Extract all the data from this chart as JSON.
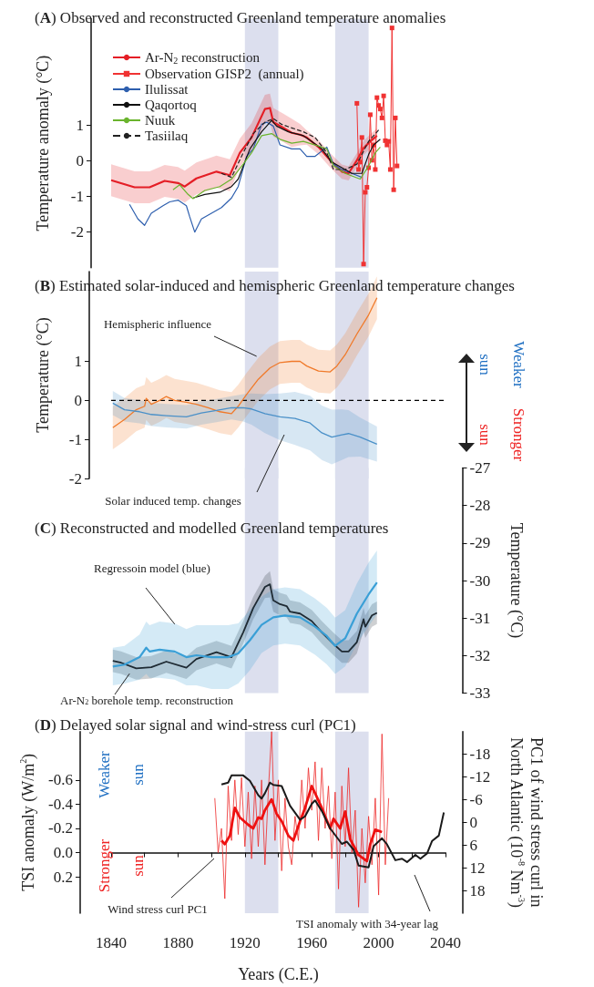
{
  "chart_data": [
    {
      "type": "line",
      "title": "(A) Observed and reconstructed Greenland temperature anomalies",
      "ylabel": "Temperature anomaly (°C)",
      "xlim": [
        1840,
        2040
      ],
      "ylim": [
        -3,
        4
      ],
      "yticks": [
        -2,
        -1,
        0,
        1
      ],
      "tick_labels": "y",
      "legend": "top left",
      "bands": [
        {
          "axis": "x",
          "from": 1920,
          "to": 1940,
          "color": "#dcdfee"
        },
        {
          "axis": "x",
          "from": 1974,
          "to": 1994,
          "color": "#dcdfee"
        }
      ],
      "series": [
        {
          "name": "Ar-N$_{2}$ reconstruction",
          "color": "#e41e26",
          "x": [
            1840,
            1854,
            1863,
            1872,
            1880,
            1884,
            1891,
            1903,
            1911,
            1917,
            1924,
            1932,
            1935,
            1937,
            1943,
            1948,
            1953,
            1957,
            1964,
            1971,
            1978,
            1982,
            1987,
            1991,
            1995,
            1999
          ],
          "values": [
            -0.54,
            -0.74,
            -0.74,
            -0.56,
            -0.62,
            -0.72,
            -0.49,
            -0.3,
            -0.4,
            0.23,
            0.66,
            1.46,
            1.49,
            1.09,
            0.93,
            0.79,
            0.74,
            0.66,
            0.39,
            0.02,
            -0.3,
            -0.35,
            0.02,
            0.36,
            0.55,
            0.71
          ],
          "upper": [
            -0.09,
            -0.29,
            -0.29,
            -0.11,
            -0.17,
            -0.27,
            -0.04,
            0.15,
            0.05,
            0.63,
            1.06,
            1.86,
            1.89,
            1.49,
            1.33,
            1.19,
            1.04,
            0.86,
            0.59,
            0.22,
            -0.1,
            -0.15,
            0.22,
            0.56,
            0.75,
            0.91
          ],
          "lower": [
            -0.99,
            -1.19,
            -1.19,
            -1.01,
            -1.07,
            -1.17,
            -0.94,
            -0.75,
            -0.85,
            -0.17,
            0.26,
            1.06,
            1.09,
            0.69,
            0.53,
            0.39,
            0.44,
            0.46,
            0.19,
            -0.18,
            -0.5,
            -0.55,
            -0.18,
            0.16,
            0.35,
            0.51
          ]
        },
        {
          "name": "Observation GISP2  (annual)",
          "color": "#f03232",
          "marker": "square",
          "x": [
            1987,
            1988,
            1989,
            1990,
            1991,
            1992,
            1993,
            1994,
            1995,
            1996,
            1997,
            1998,
            1999,
            2000,
            2001,
            2002,
            2003,
            2004,
            2005,
            2006,
            2007,
            2008,
            2009,
            2010,
            2011
          ],
          "values": [
            1.62,
            -0.24,
            -0.03,
            0.66,
            -2.9,
            -0.88,
            -0.74,
            -0.19,
            1.3,
            0.02,
            0.45,
            -0.24,
            1.78,
            1.56,
            1.46,
            1.21,
            1.83,
            0.57,
            0.45,
            0.55,
            -0.24,
            3.74,
            -0.81,
            1.21,
            -0.14
          ]
        },
        {
          "name": "Ilulissat",
          "color": "#2e5fae",
          "x": [
            1851,
            1856,
            1860,
            1864,
            1871,
            1875,
            1880,
            1885,
            1887,
            1890,
            1894,
            1900,
            1906,
            1912,
            1916,
            1921,
            1925,
            1930,
            1933,
            1937,
            1941,
            1948,
            1953,
            1957,
            1962,
            1969,
            1973,
            1978,
            1984,
            1990
          ],
          "values": [
            -1.22,
            -1.63,
            -1.81,
            -1.47,
            -1.26,
            -1.15,
            -1.1,
            -1.26,
            -1.57,
            -2.0,
            -1.63,
            -1.47,
            -1.31,
            -1.04,
            -0.72,
            0.13,
            0.34,
            1.03,
            1.09,
            0.98,
            0.45,
            0.34,
            0.34,
            0.13,
            0.13,
            0.39,
            -0.09,
            -0.24,
            -0.35,
            -0.46
          ]
        },
        {
          "name": "Qaqortoq",
          "color": "#111111",
          "x": [
            1889,
            1896,
            1905,
            1912,
            1916,
            1923,
            1930,
            1936,
            1939,
            1946,
            1955,
            1960,
            1966,
            1972,
            1978,
            1984,
            1990,
            1994,
            1997,
            2001
          ],
          "values": [
            -1.04,
            -0.94,
            -0.88,
            -0.72,
            -0.51,
            0.34,
            0.82,
            1.14,
            0.98,
            0.82,
            0.71,
            0.55,
            0.34,
            -0.03,
            -0.19,
            -0.35,
            -0.35,
            0.18,
            0.45,
            0.61
          ]
        },
        {
          "name": "Nuuk",
          "color": "#6ab42d",
          "x": [
            1877,
            1881,
            1886,
            1889,
            1896,
            1905,
            1912,
            1919,
            1924,
            1930,
            1936,
            1941,
            1948,
            1955,
            1962,
            1969,
            1973,
            1980,
            1989,
            1994,
            1998,
            2001
          ],
          "values": [
            -0.81,
            -0.67,
            -0.94,
            -1.06,
            -0.83,
            -0.72,
            -0.51,
            -0.09,
            0.23,
            0.71,
            0.77,
            0.61,
            0.5,
            0.55,
            0.45,
            0.34,
            -0.14,
            -0.35,
            -0.51,
            -0.14,
            0.23,
            0.39
          ]
        },
        {
          "name": "Tasiilaq",
          "color": "#222222",
          "line_style": "dashed",
          "x": [
            1906,
            1912,
            1919,
            1925,
            1932,
            1937,
            1942,
            1948,
            1955,
            1962,
            1969,
            1973,
            1980,
            1987,
            1994,
            2000
          ],
          "values": [
            -0.35,
            -0.46,
            0.23,
            0.77,
            1.09,
            1.19,
            1.03,
            0.93,
            0.82,
            0.66,
            0.23,
            -0.24,
            -0.24,
            -0.09,
            0.55,
            0.87
          ]
        }
      ]
    },
    {
      "type": "line",
      "title": "(B) Estimated solar-induced and hemispheric Greenland temperature changes",
      "ylabel": "Temperature (°C)",
      "xlim": [
        1840,
        2040
      ],
      "ylim": [
        -2,
        3.3
      ],
      "yticks": [
        -2,
        -1,
        0,
        1
      ],
      "tick_labels": "y",
      "bands": [
        {
          "axis": "x",
          "from": 1920,
          "to": 1940,
          "color": "#dcdfee"
        },
        {
          "axis": "x",
          "from": 1974,
          "to": 1994,
          "color": "#dcdfee"
        }
      ],
      "ref_lines": [
        {
          "axis": "y",
          "value": 0,
          "color": "#000000",
          "line_style": "dashed"
        }
      ],
      "annotations": [
        {
          "text": "Hemispheric influence",
          "x": 1927,
          "y": 1.13
        },
        "Solar induced temp. changes",
        "Weaker\nsun",
        "Stronger\nsun"
      ],
      "series": [
        {
          "color": "#f07a2a",
          "x": [
            1841,
            1848,
            1855,
            1860,
            1861,
            1864,
            1869,
            1873,
            1878,
            1885,
            1891,
            1898,
            1905,
            1912,
            1916,
            1921,
            1928,
            1935,
            1941,
            1948,
            1953,
            1957,
            1964,
            1971,
            1975,
            1980,
            1987,
            1994,
            1999
          ],
          "values": [
            -0.7,
            -0.49,
            -0.24,
            -0.15,
            0.05,
            -0.1,
            0.0,
            0.1,
            0.0,
            -0.05,
            -0.1,
            -0.19,
            -0.29,
            -0.34,
            -0.15,
            0.15,
            0.54,
            0.83,
            0.97,
            1.0,
            1.0,
            0.88,
            0.75,
            0.73,
            0.88,
            1.17,
            1.7,
            2.19,
            2.63
          ],
          "upper": [
            -0.15,
            0.06,
            0.31,
            0.4,
            0.6,
            0.45,
            0.55,
            0.65,
            0.55,
            0.5,
            0.45,
            0.36,
            0.26,
            0.21,
            0.4,
            0.7,
            1.09,
            1.38,
            1.52,
            1.55,
            1.55,
            1.43,
            1.3,
            1.28,
            1.43,
            1.72,
            2.25,
            2.74,
            3.18
          ],
          "lower": [
            -1.25,
            -1.04,
            -0.79,
            -0.7,
            -0.5,
            -0.65,
            -0.55,
            -0.45,
            -0.55,
            -0.6,
            -0.65,
            -0.74,
            -0.84,
            -0.89,
            -0.7,
            -0.4,
            -0.01,
            0.28,
            0.42,
            0.45,
            0.45,
            0.33,
            0.2,
            0.18,
            0.33,
            0.62,
            1.15,
            1.64,
            2.08
          ]
        },
        {
          "color": "#4a90c8",
          "x": [
            1841,
            1848,
            1857,
            1864,
            1873,
            1885,
            1894,
            1903,
            1912,
            1919,
            1924,
            1932,
            1941,
            1950,
            1959,
            1966,
            1972,
            1978,
            1982,
            1989,
            1999
          ],
          "values": [
            -0.07,
            -0.24,
            -0.29,
            -0.36,
            -0.39,
            -0.42,
            -0.32,
            -0.26,
            -0.19,
            -0.19,
            -0.22,
            -0.34,
            -0.42,
            -0.46,
            -0.58,
            -0.83,
            -0.94,
            -0.88,
            -0.85,
            -0.94,
            -1.12
          ],
          "upper": [
            0.24,
            0.06,
            0.01,
            -0.06,
            -0.09,
            -0.12,
            -0.02,
            0.04,
            0.11,
            0.16,
            0.18,
            0.16,
            0.18,
            0.22,
            0.12,
            -0.13,
            -0.24,
            -0.23,
            -0.25,
            -0.44,
            -0.67
          ],
          "lower": [
            -0.38,
            -0.54,
            -0.59,
            -0.66,
            -0.69,
            -0.72,
            -0.62,
            -0.56,
            -0.49,
            -0.54,
            -0.62,
            -0.84,
            -1.02,
            -1.14,
            -1.28,
            -1.53,
            -1.64,
            -1.53,
            -1.45,
            -1.44,
            -1.57
          ]
        }
      ]
    },
    {
      "type": "line",
      "title": "(C) Reconstructed and modelled Greenland temperatures",
      "ylabel": "Temperature (°C)",
      "xlim": [
        1840,
        2040
      ],
      "ylim": [
        -33,
        -27
      ],
      "yticks": [
        -33,
        -32,
        -31,
        -30,
        -29,
        -28,
        -27
      ],
      "tick_labels": "y",
      "bands": [
        {
          "axis": "x",
          "from": 1920,
          "to": 1940,
          "color": "#dcdfee"
        },
        {
          "axis": "x",
          "from": 1974,
          "to": 1994,
          "color": "#dcdfee"
        }
      ],
      "annotations": [
        {
          "text": "Regressoin model (blue)",
          "x": 1878,
          "y": -31.16
        },
        {
          "text": "Ar-N$_{2}$ borehole temp. reconstruction",
          "x": 1851,
          "y": -32.48
        }
      ],
      "series": [
        {
          "color": "#1e2a33",
          "x": [
            1841,
            1846,
            1855,
            1864,
            1873,
            1885,
            1891,
            1903,
            1912,
            1919,
            1925,
            1932,
            1935,
            1937,
            1941,
            1945,
            1947,
            1953,
            1960,
            1966,
            1973,
            1978,
            1982,
            1987,
            1991,
            1992,
            1996,
            1999
          ],
          "values": [
            -32.14,
            -32.19,
            -32.34,
            -32.31,
            -32.16,
            -32.32,
            -32.09,
            -31.91,
            -32.04,
            -31.38,
            -30.73,
            -30.17,
            -30.1,
            -30.53,
            -30.63,
            -30.68,
            -30.83,
            -30.88,
            -31.08,
            -31.38,
            -31.69,
            -31.89,
            -31.89,
            -31.64,
            -31.03,
            -31.23,
            -30.93,
            -30.86
          ],
          "upper": [
            -31.84,
            -31.89,
            -32.04,
            -32.01,
            -31.86,
            -32.02,
            -31.79,
            -31.61,
            -31.74,
            -31.08,
            -30.43,
            -29.87,
            -29.75,
            -30.23,
            -30.33,
            -30.38,
            -30.53,
            -30.58,
            -30.78,
            -31.08,
            -31.39,
            -31.59,
            -31.59,
            -31.34,
            -30.73,
            -30.93,
            -30.63,
            -30.56
          ],
          "lower": [
            -32.44,
            -32.49,
            -32.64,
            -32.61,
            -32.46,
            -32.62,
            -32.39,
            -32.21,
            -32.34,
            -31.68,
            -31.03,
            -30.47,
            -30.45,
            -30.83,
            -30.93,
            -30.98,
            -31.13,
            -31.18,
            -31.38,
            -31.68,
            -31.99,
            -32.19,
            -32.19,
            -31.94,
            -31.33,
            -31.53,
            -31.23,
            -31.16
          ]
        },
        {
          "color": "#3a9fd6",
          "x": [
            1841,
            1848,
            1857,
            1861,
            1863,
            1869,
            1878,
            1885,
            1891,
            1900,
            1910,
            1916,
            1923,
            1930,
            1937,
            1944,
            1953,
            1962,
            1969,
            1974,
            1980,
            1987,
            1994,
            1999
          ],
          "values": [
            -32.29,
            -32.24,
            -32.04,
            -31.79,
            -31.89,
            -31.84,
            -31.89,
            -32.04,
            -31.99,
            -32.04,
            -32.04,
            -31.94,
            -31.59,
            -31.18,
            -30.98,
            -30.93,
            -30.98,
            -31.23,
            -31.48,
            -31.74,
            -31.54,
            -30.88,
            -30.37,
            -30.05
          ],
          "upper": [
            -31.79,
            -31.74,
            -31.44,
            -31.09,
            -31.19,
            -31.09,
            -31.14,
            -31.29,
            -31.19,
            -31.19,
            -31.19,
            -31.14,
            -30.79,
            -30.43,
            -30.23,
            -30.18,
            -30.23,
            -30.48,
            -30.73,
            -30.99,
            -30.79,
            -30.08,
            -29.52,
            -29.2
          ],
          "lower": [
            -32.79,
            -32.74,
            -32.64,
            -32.49,
            -32.59,
            -32.59,
            -32.64,
            -32.79,
            -32.79,
            -32.89,
            -32.89,
            -32.74,
            -32.39,
            -31.93,
            -31.73,
            -31.68,
            -31.73,
            -31.98,
            -32.23,
            -32.49,
            -32.29,
            -31.68,
            -31.22,
            -30.9
          ]
        }
      ]
    },
    {
      "type": "line",
      "title": "(D) Delayed solar signal and wind-stress curl (PC1)",
      "xlabel": "Years (C.E.)",
      "ylabel": "TSI anomaly (W/m$^{2}$)",
      "y2label": "PC1 of wind stress curl in\nNorth Atlantic (10$^{-8}$ Nm$^{-3}$)",
      "xlim": [
        1840,
        2040
      ],
      "xticks": [
        1840,
        {
          "value": 1860,
          "label": null
        },
        1880,
        {
          "value": 1900,
          "label": null
        },
        1920,
        {
          "value": 1940,
          "label": null
        },
        1960,
        {
          "value": 1980,
          "label": null
        },
        2000,
        {
          "value": 2020,
          "label": null
        },
        2040
      ],
      "ylim": [
        0.5,
        -1.0
      ],
      "yticks": [
        -0.6,
        -0.4,
        -0.2,
        {
          "value": 0,
          "label": "0.0"
        },
        0.2
      ],
      "y2lim": [
        24,
        -24
      ],
      "y2ticks": [
        -18,
        -12,
        -6,
        0,
        6,
        12,
        18
      ],
      "bands": [
        {
          "axis": "x",
          "from": 1920,
          "to": 1940,
          "color": "#dcdfee"
        },
        {
          "axis": "x",
          "from": 1974,
          "to": 1994,
          "color": "#dcdfee"
        }
      ],
      "annotations": [
        "Weaker\nsun",
        "Stronger\nsun",
        "Wind stress curl PC1",
        "TSI anomaly with 34-year lag"
      ],
      "series": [
        {
          "color": "#ee2a2a",
          "x": [
            1902,
            1904,
            1906,
            1908,
            1910,
            1912,
            1914,
            1916,
            1918,
            1920,
            1922,
            1924,
            1926,
            1928,
            1930,
            1932,
            1934,
            1936,
            1938,
            1940,
            1942,
            1944,
            1946,
            1948,
            1950,
            1952,
            1954,
            1956,
            1958,
            1960,
            1962,
            1964,
            1966,
            1968,
            1970,
            1972,
            1974,
            1976,
            1978,
            1980,
            1982,
            1984,
            1986,
            1988,
            1990,
            1992,
            1994,
            1996,
            1998,
            2000,
            2002,
            2004,
            2006
          ],
          "values": [
            -0.45,
            0.0,
            -0.2,
            0.38,
            -0.55,
            -0.1,
            -0.6,
            -0.15,
            -0.62,
            -0.05,
            -0.5,
            0.05,
            -0.55,
            -0.05,
            -0.6,
            0.1,
            -0.5,
            -1.0,
            -0.1,
            -0.6,
            0.15,
            -0.45,
            -0.05,
            0.1,
            -0.3,
            -0.1,
            -0.6,
            -0.2,
            -0.7,
            -0.35,
            -0.75,
            -0.1,
            -0.7,
            -0.2,
            -0.55,
            0.05,
            -0.5,
            0.3,
            -0.55,
            -0.05,
            -0.7,
            0.0,
            -0.35,
            0.45,
            -0.2,
            0.25,
            -0.3,
            0.1,
            -0.45,
            0.35,
            -0.98,
            0.1,
            -0.45
          ]
        },
        {
          "color": "#ee1111",
          "x": [
            1906,
            1908,
            1911,
            1914,
            1917,
            1922,
            1925,
            1928,
            1930,
            1932,
            1936,
            1939,
            1942,
            1946,
            1949,
            1953,
            1956,
            1960,
            1963,
            1966,
            1971,
            1973,
            1977,
            1980,
            1983,
            1988,
            1993,
            1995,
            1998,
            2002
          ],
          "values": [
            -0.1,
            -0.07,
            -0.14,
            -0.37,
            -0.29,
            -0.23,
            -0.2,
            -0.29,
            -0.28,
            -0.35,
            -0.44,
            -0.32,
            -0.26,
            -0.14,
            -0.1,
            -0.26,
            -0.37,
            -0.55,
            -0.46,
            -0.37,
            -0.2,
            -0.28,
            -0.2,
            -0.34,
            -0.11,
            0.02,
            0.07,
            -0.07,
            -0.19,
            -0.17
          ]
        },
        {
          "color": "#1a1a1a",
          "axis": "y2",
          "x": [
            1906,
            1910,
            1912,
            1919,
            1923,
            1928,
            1930,
            1932,
            1935,
            1937,
            1942,
            1947,
            1953,
            1956,
            1960,
            1962,
            1966,
            1971,
            1978,
            1981,
            1985,
            1988,
            1994,
            1997,
            2002,
            2005,
            2010,
            2014,
            2017,
            2022,
            2025,
            2029,
            2032,
            2036,
            2039
          ],
          "values": [
            -10.0,
            -10.5,
            -12.4,
            -12.4,
            -11.0,
            -7.2,
            -6.3,
            -7.7,
            -10.5,
            -9.9,
            -9.6,
            -4.4,
            -0.7,
            -1.6,
            -4.9,
            -5.8,
            -3.0,
            1.6,
            5.7,
            5.1,
            7.2,
            11.4,
            11.9,
            6.3,
            4.2,
            5.8,
            10.0,
            9.6,
            10.5,
            8.6,
            9.6,
            8.2,
            4.9,
            3.5,
            -2.6
          ]
        }
      ]
    }
  ]
}
